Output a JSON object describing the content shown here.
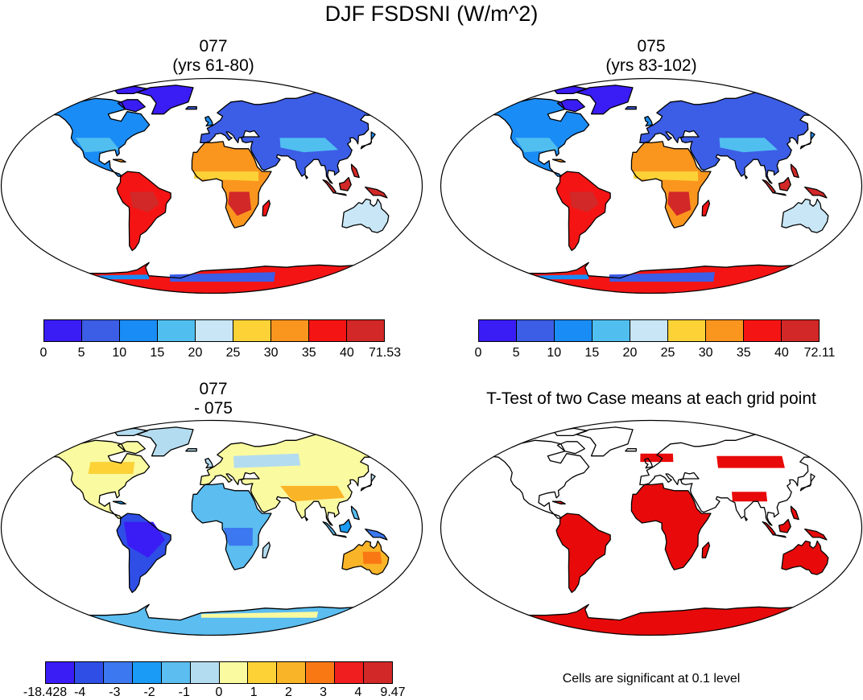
{
  "figure": {
    "main_title": "DJF FSDSNI (W/m^2)",
    "note": "Cells are significant at 0.1 level"
  },
  "palettes": {
    "mean": [
      "#3a1cf5",
      "#3c5de6",
      "#1a8cf5",
      "#50bff0",
      "#c8e6f5",
      "#fcd237",
      "#fa961e",
      "#f51414",
      "#d22828"
    ],
    "diff": [
      "#3a1cf5",
      "#2e4ee6",
      "#3c78f0",
      "#1a9bf5",
      "#5bbdf0",
      "#b4dcf0",
      "#fafaa0",
      "#fcd237",
      "#fab428",
      "#fa7814",
      "#f01e1e",
      "#d22828"
    ],
    "sig": "#e80a0a"
  },
  "chart_data": [
    {
      "type": "heatmap",
      "id": "panel-077",
      "title_line1": "077",
      "title_line2": "(yrs 61-80)",
      "projection": "robinson-world",
      "colorbar": {
        "levels": [
          "0",
          "5",
          "10",
          "15",
          "20",
          "25",
          "30",
          "35",
          "40",
          "71.53"
        ],
        "min": 0,
        "max": 71.53
      }
    },
    {
      "type": "heatmap",
      "id": "panel-075",
      "title_line1": "075",
      "title_line2": "(yrs 83-102)",
      "projection": "robinson-world",
      "colorbar": {
        "levels": [
          "0",
          "5",
          "10",
          "15",
          "20",
          "25",
          "30",
          "35",
          "40",
          "72.11"
        ],
        "min": 0,
        "max": 72.11
      }
    },
    {
      "type": "heatmap",
      "id": "panel-diff",
      "title_line1": "077",
      "title_line2": "- 075",
      "projection": "robinson-world",
      "colorbar": {
        "levels": [
          "-18.428",
          "-4",
          "-3",
          "-2",
          "-1",
          "0",
          "1",
          "2",
          "3",
          "4",
          "9.47"
        ],
        "min": -18.428,
        "max": 9.47
      }
    },
    {
      "type": "heatmap",
      "id": "panel-ttest",
      "title_line1": "T-Test of two Case means at each grid point",
      "projection": "robinson-world",
      "significance_level": 0.1
    }
  ]
}
